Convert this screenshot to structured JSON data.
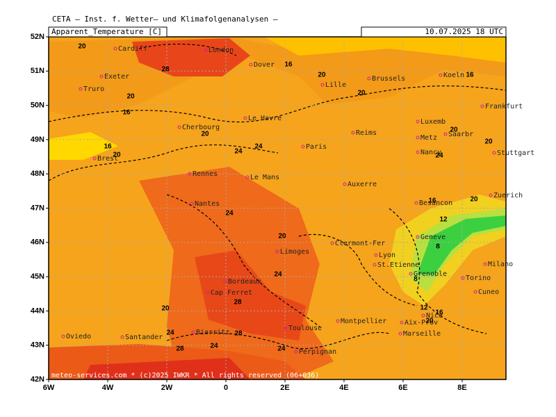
{
  "header": "CETA – Inst. f. Wetter– und Klimafolgenanalysen –",
  "panel": {
    "parameter": "Apparent_Temperature [C]",
    "valid": "10.07.2025 18 UTC"
  },
  "lat_labels": [
    "52N",
    "51N",
    "50N",
    "49N",
    "48N",
    "47N",
    "46N",
    "45N",
    "44N",
    "43N",
    "42N"
  ],
  "lon_labels": [
    "6W",
    "4W",
    "2W",
    "0",
    "2E",
    "4E",
    "6E",
    "8E"
  ],
  "cities": [
    "Cardiff",
    "London",
    "Dover",
    "Exeter",
    "Truro",
    "Lille",
    "Brussels",
    "Koeln",
    "Frankfurt",
    "Cherbourg",
    "Le Havre",
    "Reims",
    "Luxemb",
    "Metz",
    "Saarbr",
    "Stuttgart",
    "Paris",
    "Nancy",
    "Brest",
    "Rennes",
    "Le Mans",
    "Auxerre",
    "Nantes",
    "Besancon",
    "Zuerich",
    "Geneve",
    "Clermont-Fer",
    "Limoges",
    "Lyon",
    "St.Etienne",
    "Grenoble",
    "Milano",
    "Bordeaux",
    "Torino",
    "Cap Ferret",
    "Cuneo",
    "Montpellier",
    "Nice",
    "Toulouse",
    "Aix-Prov",
    "Marseille",
    "Oviedo",
    "Santander",
    "Biarritz",
    "Perpignan"
  ],
  "contour_labels": [
    "20",
    "28",
    "16",
    "20",
    "20",
    "20",
    "16",
    "20",
    "16",
    "20",
    "24",
    "24",
    "16",
    "20",
    "24",
    "24",
    "20",
    "16",
    "20",
    "12",
    "8",
    "8",
    "20",
    "24",
    "28",
    "20",
    "24",
    "28",
    "24",
    "24",
    "28",
    "20",
    "16",
    "12"
  ],
  "footer": "meteo-services.com * (c)2025 IWKR * All rights reserved (06+036)"
}
